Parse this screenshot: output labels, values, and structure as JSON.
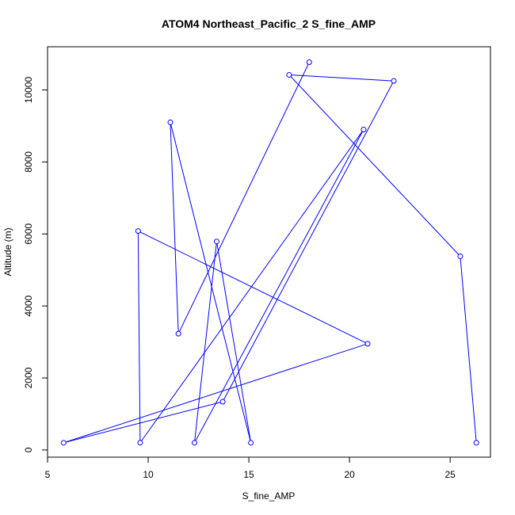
{
  "chart_data": {
    "type": "line",
    "title": "ATOM4 Northeast_Pacific_2 S_fine_AMP",
    "xlabel": "S_fine_AMP",
    "ylabel": "Altitude (m)",
    "xlim": [
      5,
      27
    ],
    "ylim": [
      -200,
      11200
    ],
    "xticks": [
      5,
      10,
      15,
      20,
      25
    ],
    "yticks": [
      0,
      2000,
      4000,
      6000,
      8000,
      10000
    ],
    "grid": false,
    "markers": "open-circle",
    "line_color": "#0000ff",
    "series": [
      {
        "points": [
          {
            "x": 26.3,
            "y": 200
          },
          {
            "x": 25.5,
            "y": 5380
          },
          {
            "x": 17.0,
            "y": 10420
          },
          {
            "x": 22.2,
            "y": 10250
          },
          {
            "x": 13.7,
            "y": 1340
          },
          {
            "x": 5.8,
            "y": 200
          },
          {
            "x": 20.9,
            "y": 2950
          },
          {
            "x": 9.5,
            "y": 6080
          },
          {
            "x": 9.6,
            "y": 200
          },
          {
            "x": 20.7,
            "y": 8900
          },
          {
            "x": 12.3,
            "y": 200
          },
          {
            "x": 13.4,
            "y": 5790
          },
          {
            "x": 15.1,
            "y": 200
          },
          {
            "x": 11.1,
            "y": 9100
          },
          {
            "x": 11.5,
            "y": 3230
          },
          {
            "x": 18.0,
            "y": 10770
          }
        ]
      }
    ]
  }
}
